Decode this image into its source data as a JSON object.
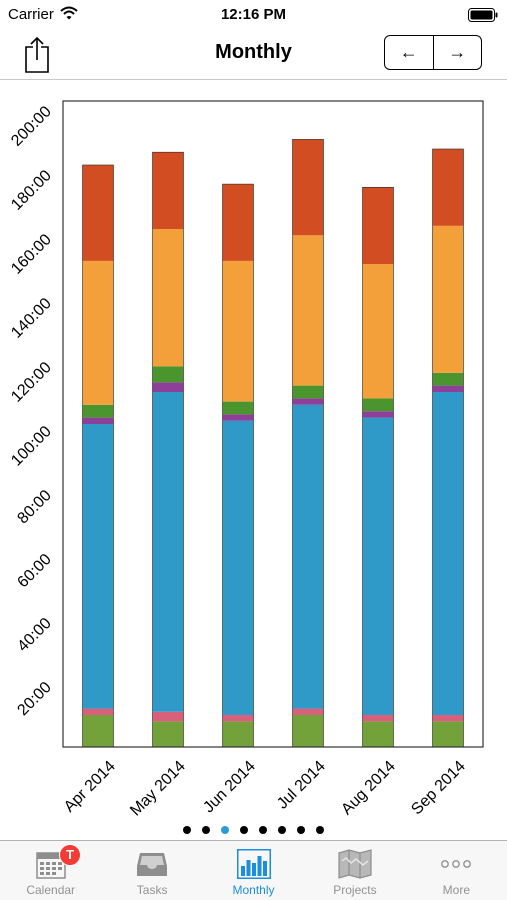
{
  "status_bar": {
    "carrier": "Carrier",
    "time": "12:16 PM"
  },
  "nav": {
    "title": "Monthly",
    "prev_symbol": "←",
    "next_symbol": "→"
  },
  "chart_data": {
    "type": "bar",
    "stacked": true,
    "categories": [
      "Apr 2014",
      "May 2014",
      "Jun 2014",
      "Jul 2014",
      "Aug 2014",
      "Sep 2014"
    ],
    "y_tick_labels": [
      "20:00",
      "40:00",
      "60:00",
      "80:00",
      "100:00",
      "120:00",
      "140:00",
      "160:00",
      "180:00",
      "200:00"
    ],
    "y_tick_values": [
      20,
      40,
      60,
      80,
      100,
      120,
      140,
      160,
      180,
      200
    ],
    "ylim": [
      0,
      202
    ],
    "series": [
      {
        "color": "#73a13a",
        "values": [
          10,
          8,
          8,
          10,
          8,
          8
        ]
      },
      {
        "color": "#d9607a",
        "values": [
          2,
          3,
          2,
          2,
          2,
          2
        ]
      },
      {
        "color": "#2f99c7",
        "values": [
          89,
          100,
          92,
          95,
          93,
          101
        ]
      },
      {
        "color": "#8e3f9a",
        "values": [
          2,
          3,
          2,
          2,
          2,
          2
        ]
      },
      {
        "color": "#4b952f",
        "values": [
          4,
          5,
          4,
          4,
          4,
          4
        ]
      },
      {
        "color": "#f4a03a",
        "values": [
          45,
          43,
          44,
          47,
          42,
          46
        ]
      },
      {
        "color": "#d34d22",
        "values": [
          30,
          24,
          24,
          30,
          24,
          24
        ]
      }
    ]
  },
  "pager": {
    "count": 8,
    "active_index": 2
  },
  "tabs": [
    {
      "label": "Calendar",
      "icon": "calendar-icon",
      "badge": "T",
      "active": false
    },
    {
      "label": "Tasks",
      "icon": "inbox-tray-icon",
      "active": false
    },
    {
      "label": "Monthly",
      "icon": "bar-chart-icon",
      "active": true
    },
    {
      "label": "Projects",
      "icon": "map-icon",
      "active": false
    },
    {
      "label": "More",
      "icon": "more-dots-icon",
      "active": false
    }
  ],
  "colors": {
    "accent": "#1c8ee0",
    "tab_inactive": "#929292",
    "badge": "#f43b35"
  }
}
